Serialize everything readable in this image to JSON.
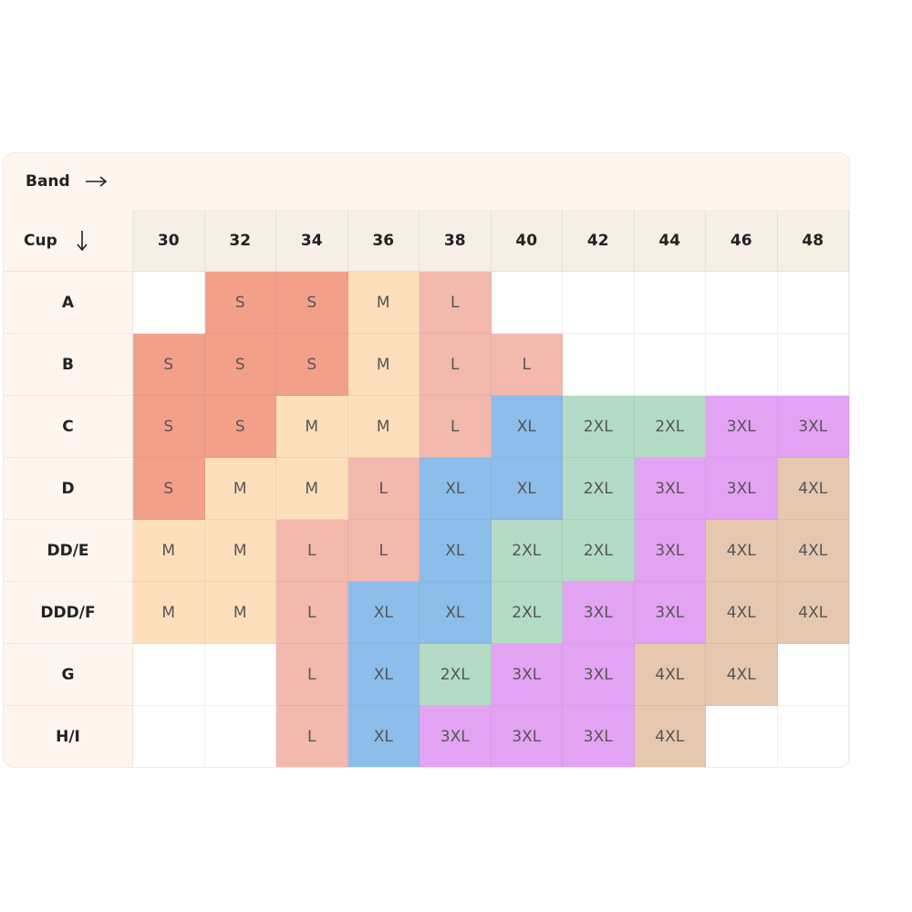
{
  "header": {
    "band_label": "Band",
    "cup_label": "Cup"
  },
  "bands": [
    30,
    32,
    34,
    36,
    38,
    40,
    42,
    44,
    46,
    48
  ],
  "size_colors": {
    "S": "#f3a08b",
    "M": "#fde0bb",
    "L": "#f3b8ae",
    "XL": "#8dbdea",
    "2XL": "#b4dbc5",
    "3XL": "#e3a3f3",
    "4XL": "#e6c8b0"
  },
  "rows": [
    {
      "cup": "A",
      "sizes": [
        null,
        "S",
        "S",
        "M",
        "L",
        null,
        null,
        null,
        null,
        null
      ]
    },
    {
      "cup": "B",
      "sizes": [
        "S",
        "S",
        "S",
        "M",
        "L",
        "L",
        null,
        null,
        null,
        null
      ]
    },
    {
      "cup": "C",
      "sizes": [
        "S",
        "S",
        "M",
        "M",
        "L",
        "XL",
        "2XL",
        "2XL",
        "3XL",
        "3XL"
      ]
    },
    {
      "cup": "D",
      "sizes": [
        "S",
        "M",
        "M",
        "L",
        "XL",
        "XL",
        "2XL",
        "3XL",
        "3XL",
        "4XL"
      ]
    },
    {
      "cup": "DD/E",
      "sizes": [
        "M",
        "M",
        "L",
        "L",
        "XL",
        "2XL",
        "2XL",
        "3XL",
        "4XL",
        "4XL"
      ]
    },
    {
      "cup": "DDD/F",
      "sizes": [
        "M",
        "M",
        "L",
        "XL",
        "XL",
        "2XL",
        "3XL",
        "3XL",
        "4XL",
        "4XL"
      ]
    },
    {
      "cup": "G",
      "sizes": [
        null,
        null,
        "L",
        "XL",
        "2XL",
        "3XL",
        "3XL",
        "4XL",
        "4XL",
        null
      ]
    },
    {
      "cup": "H/I",
      "sizes": [
        null,
        null,
        "L",
        "XL",
        "3XL",
        "3XL",
        "3XL",
        "4XL",
        null,
        null
      ]
    }
  ]
}
